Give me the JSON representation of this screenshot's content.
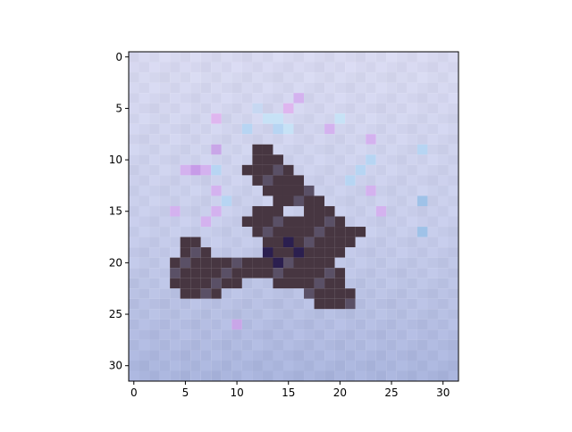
{
  "chart_data": {
    "type": "heatmap",
    "title": "",
    "xlabel": "",
    "ylabel": "",
    "rows": 32,
    "cols": 32,
    "xlim": [
      -0.5,
      31.5
    ],
    "ylim": [
      31.5,
      -0.5
    ],
    "x_ticks": [
      {
        "value": 0,
        "label": "0"
      },
      {
        "value": 5,
        "label": "5"
      },
      {
        "value": 10,
        "label": "10"
      },
      {
        "value": 15,
        "label": "15"
      },
      {
        "value": 20,
        "label": "20"
      },
      {
        "value": 25,
        "label": "25"
      },
      {
        "value": 30,
        "label": "30"
      }
    ],
    "y_ticks": [
      {
        "value": 0,
        "label": "0"
      },
      {
        "value": 5,
        "label": "5"
      },
      {
        "value": 10,
        "label": "10"
      },
      {
        "value": 15,
        "label": "15"
      },
      {
        "value": 20,
        "label": "20"
      },
      {
        "value": 25,
        "label": "25"
      },
      {
        "value": 30,
        "label": "30"
      }
    ],
    "grid": false,
    "legend": "none",
    "image": {
      "background_gradient": {
        "top": "#d7d8ef",
        "middle": "#c8cdea",
        "bottom": "#a9b4dc"
      },
      "object_color": "#473641",
      "object_shadow_color": "#5a5066",
      "object_cells": [
        [
          9,
          12
        ],
        [
          9,
          13
        ],
        [
          10,
          12
        ],
        [
          10,
          13
        ],
        [
          10,
          14
        ],
        [
          11,
          11
        ],
        [
          11,
          12
        ],
        [
          11,
          13
        ],
        [
          11,
          14
        ],
        [
          11,
          15
        ],
        [
          12,
          12
        ],
        [
          12,
          13
        ],
        [
          12,
          14
        ],
        [
          12,
          15
        ],
        [
          12,
          16
        ],
        [
          13,
          13
        ],
        [
          13,
          14
        ],
        [
          13,
          15
        ],
        [
          13,
          16
        ],
        [
          13,
          17
        ],
        [
          14,
          14
        ],
        [
          14,
          15
        ],
        [
          14,
          16
        ],
        [
          14,
          17
        ],
        [
          14,
          18
        ],
        [
          15,
          12
        ],
        [
          15,
          13
        ],
        [
          15,
          14
        ],
        [
          15,
          17
        ],
        [
          15,
          18
        ],
        [
          15,
          19
        ],
        [
          16,
          11
        ],
        [
          16,
          12
        ],
        [
          16,
          13
        ],
        [
          16,
          14
        ],
        [
          16,
          15
        ],
        [
          16,
          16
        ],
        [
          16,
          17
        ],
        [
          16,
          18
        ],
        [
          16,
          19
        ],
        [
          16,
          20
        ],
        [
          17,
          12
        ],
        [
          17,
          13
        ],
        [
          17,
          14
        ],
        [
          17,
          15
        ],
        [
          17,
          16
        ],
        [
          17,
          17
        ],
        [
          17,
          18
        ],
        [
          17,
          19
        ],
        [
          17,
          20
        ],
        [
          17,
          21
        ],
        [
          17,
          22
        ],
        [
          18,
          5
        ],
        [
          18,
          6
        ],
        [
          18,
          13
        ],
        [
          18,
          14
        ],
        [
          18,
          15
        ],
        [
          18,
          16
        ],
        [
          18,
          17
        ],
        [
          18,
          18
        ],
        [
          18,
          19
        ],
        [
          18,
          20
        ],
        [
          18,
          21
        ],
        [
          19,
          5
        ],
        [
          19,
          6
        ],
        [
          19,
          7
        ],
        [
          19,
          13
        ],
        [
          19,
          14
        ],
        [
          19,
          15
        ],
        [
          19,
          16
        ],
        [
          19,
          17
        ],
        [
          19,
          18
        ],
        [
          19,
          19
        ],
        [
          19,
          20
        ],
        [
          20,
          4
        ],
        [
          20,
          5
        ],
        [
          20,
          6
        ],
        [
          20,
          7
        ],
        [
          20,
          8
        ],
        [
          20,
          9
        ],
        [
          20,
          10
        ],
        [
          20,
          11
        ],
        [
          20,
          12
        ],
        [
          20,
          13
        ],
        [
          20,
          14
        ],
        [
          20,
          15
        ],
        [
          20,
          16
        ],
        [
          20,
          17
        ],
        [
          20,
          18
        ],
        [
          20,
          19
        ],
        [
          21,
          4
        ],
        [
          21,
          5
        ],
        [
          21,
          6
        ],
        [
          21,
          7
        ],
        [
          21,
          8
        ],
        [
          21,
          9
        ],
        [
          21,
          10
        ],
        [
          21,
          11
        ],
        [
          21,
          12
        ],
        [
          21,
          13
        ],
        [
          21,
          14
        ],
        [
          21,
          15
        ],
        [
          21,
          16
        ],
        [
          21,
          17
        ],
        [
          21,
          18
        ],
        [
          21,
          19
        ],
        [
          21,
          20
        ],
        [
          22,
          4
        ],
        [
          22,
          5
        ],
        [
          22,
          6
        ],
        [
          22,
          7
        ],
        [
          22,
          8
        ],
        [
          22,
          9
        ],
        [
          22,
          10
        ],
        [
          22,
          14
        ],
        [
          22,
          15
        ],
        [
          22,
          16
        ],
        [
          22,
          17
        ],
        [
          22,
          18
        ],
        [
          22,
          19
        ],
        [
          22,
          20
        ],
        [
          23,
          5
        ],
        [
          23,
          6
        ],
        [
          23,
          7
        ],
        [
          23,
          8
        ],
        [
          23,
          17
        ],
        [
          23,
          18
        ],
        [
          23,
          19
        ],
        [
          23,
          20
        ],
        [
          23,
          21
        ],
        [
          24,
          18
        ],
        [
          24,
          19
        ],
        [
          24,
          20
        ],
        [
          24,
          21
        ]
      ],
      "dark_cells": [
        [
          19,
          13
        ],
        [
          20,
          14
        ],
        [
          18,
          15
        ],
        [
          19,
          16
        ]
      ],
      "dark_color": "#2b1f4f",
      "noise_cells": [
        [
          4,
          16,
          "#d4b2ef"
        ],
        [
          5,
          12,
          "#c7d8f2"
        ],
        [
          5,
          15,
          "#dfb6ef"
        ],
        [
          6,
          8,
          "#dfb6ef"
        ],
        [
          6,
          13,
          "#c7e2f6"
        ],
        [
          6,
          14,
          "#c7e2f6"
        ],
        [
          6,
          20,
          "#c7e2f6"
        ],
        [
          7,
          11,
          "#b7d5f3"
        ],
        [
          7,
          14,
          "#b7d5f3"
        ],
        [
          7,
          15,
          "#c7e2f6"
        ],
        [
          7,
          19,
          "#d4b2ef"
        ],
        [
          8,
          23,
          "#d4b2ef"
        ],
        [
          9,
          8,
          "#c9a6e8"
        ],
        [
          9,
          28,
          "#b7d5f3"
        ],
        [
          10,
          23,
          "#b7d5f3"
        ],
        [
          11,
          5,
          "#d4b2ef"
        ],
        [
          11,
          6,
          "#c79be8"
        ],
        [
          11,
          7,
          "#d4b2ef"
        ],
        [
          11,
          8,
          "#b7d5f3"
        ],
        [
          11,
          22,
          "#b7d5f3"
        ],
        [
          12,
          21,
          "#b7d5f3"
        ],
        [
          13,
          8,
          "#d4b2ef"
        ],
        [
          13,
          23,
          "#d4b2ef"
        ],
        [
          14,
          9,
          "#b7d5f3"
        ],
        [
          14,
          28,
          "#9fc2e8"
        ],
        [
          15,
          4,
          "#d4b2ef"
        ],
        [
          15,
          8,
          "#d4b2ef"
        ],
        [
          15,
          24,
          "#d4b2ef"
        ],
        [
          16,
          7,
          "#d4b2ef"
        ],
        [
          17,
          28,
          "#9fc2e8"
        ],
        [
          26,
          10,
          "#c9a6e8"
        ]
      ]
    }
  }
}
